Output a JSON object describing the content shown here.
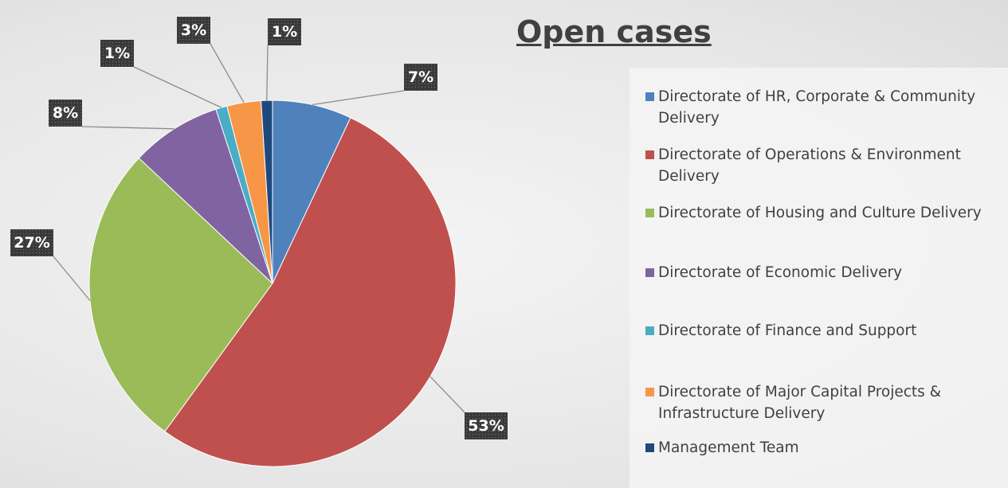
{
  "chart_data": {
    "type": "pie",
    "title": "Open cases",
    "categories": [
      "Directorate of HR, Corporate & Community Delivery",
      "Directorate of Operations & Environment Delivery",
      "Directorate of Housing and Culture Delivery",
      "Directorate of Economic Delivery",
      "Directorate of Finance and Support",
      "Directorate of Major Capital Projects & Infrastructure Delivery",
      "Management Team"
    ],
    "values": [
      7,
      53,
      27,
      8,
      1,
      3,
      1
    ],
    "value_labels": [
      "7%",
      "53%",
      "27%",
      "8%",
      "1%",
      "3%",
      "1%"
    ],
    "colors": [
      "#4f81bd",
      "#c0504d",
      "#9bbb59",
      "#8064a2",
      "#4bacc6",
      "#f79646",
      "#1f497d"
    ],
    "legend": "right"
  }
}
